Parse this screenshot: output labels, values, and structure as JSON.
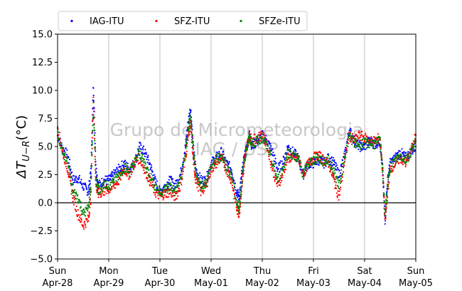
{
  "chart_data": {
    "type": "scatter",
    "title": "",
    "ylabel": "ΔT_{U−R}(°C)",
    "ylabel_parts": {
      "delta": "ΔT",
      "subscript": "U−R",
      "unit": "(°C)"
    },
    "ylim": [
      -5.0,
      15.0
    ],
    "yticks": [
      -5.0,
      -2.5,
      0.0,
      2.5,
      5.0,
      7.5,
      10.0,
      12.5,
      15.0
    ],
    "ytick_labels": [
      "−5.0",
      "−2.5",
      "0.0",
      "2.5",
      "5.0",
      "7.5",
      "10.0",
      "12.5",
      "15.0"
    ],
    "xlim": [
      0,
      7
    ],
    "x_unit": "days since Sun Apr-28 00:00",
    "xticks": [
      {
        "day": "Sun",
        "date": "Apr-28"
      },
      {
        "day": "Mon",
        "date": "Apr-29"
      },
      {
        "day": "Tue",
        "date": "Apr-30"
      },
      {
        "day": "Wed",
        "date": "May-01"
      },
      {
        "day": "Thu",
        "date": "May-02"
      },
      {
        "day": "Fri",
        "date": "May-03"
      },
      {
        "day": "Sat",
        "date": "May-04"
      },
      {
        "day": "Sun",
        "date": "May-05"
      }
    ],
    "grid": "vertical",
    "zero_line": true,
    "legend_position": "top",
    "watermark": [
      "Grupo de Micrometeorologia",
      "IAG / USP"
    ],
    "series": [
      {
        "name": "IAG-ITU",
        "color": "#0000ff",
        "x": [
          0,
          0.1,
          0.2,
          0.3,
          0.4,
          0.5,
          0.6,
          0.65,
          0.7,
          0.75,
          0.8,
          0.9,
          1.0,
          1.1,
          1.2,
          1.3,
          1.4,
          1.5,
          1.6,
          1.7,
          1.8,
          1.9,
          2.0,
          2.1,
          2.2,
          2.3,
          2.4,
          2.5,
          2.55,
          2.6,
          2.65,
          2.7,
          2.8,
          2.9,
          3.0,
          3.1,
          3.2,
          3.3,
          3.4,
          3.5,
          3.55,
          3.6,
          3.65,
          3.7,
          3.75,
          3.8,
          3.9,
          4.0,
          4.1,
          4.2,
          4.3,
          4.4,
          4.5,
          4.6,
          4.7,
          4.8,
          4.9,
          5.0,
          5.1,
          5.2,
          5.3,
          5.4,
          5.5,
          5.6,
          5.7,
          5.8,
          5.9,
          6.0,
          6.1,
          6.2,
          6.3,
          6.35,
          6.4,
          6.45,
          6.5,
          6.6,
          6.7,
          6.8,
          6.9,
          7.0
        ],
        "y": [
          6.0,
          4.8,
          4.2,
          2.0,
          2.2,
          1.5,
          1.0,
          2.5,
          10.5,
          3.0,
          1.5,
          2.0,
          2.0,
          2.5,
          3.0,
          3.5,
          3.0,
          3.5,
          5.0,
          4.5,
          3.5,
          2.0,
          1.0,
          1.5,
          2.0,
          1.5,
          2.5,
          5.0,
          7.0,
          8.5,
          5.0,
          3.0,
          2.0,
          2.0,
          3.5,
          4.0,
          4.5,
          3.5,
          3.0,
          1.0,
          0.5,
          2.5,
          4.0,
          5.0,
          6.0,
          5.0,
          5.5,
          6.0,
          5.5,
          4.5,
          3.0,
          3.5,
          5.0,
          4.5,
          4.0,
          2.5,
          3.5,
          3.5,
          3.8,
          3.5,
          4.0,
          3.5,
          2.5,
          4.0,
          6.5,
          5.5,
          5.0,
          5.0,
          5.5,
          5.2,
          5.5,
          3.0,
          -1.5,
          2.0,
          3.5,
          4.0,
          4.5,
          4.0,
          4.5,
          5.0
        ]
      },
      {
        "name": "SFZ-ITU",
        "color": "#ff0000",
        "x": [
          0,
          0.1,
          0.2,
          0.3,
          0.4,
          0.5,
          0.6,
          0.65,
          0.7,
          0.75,
          0.8,
          0.9,
          1.0,
          1.1,
          1.2,
          1.3,
          1.4,
          1.5,
          1.6,
          1.7,
          1.8,
          1.9,
          2.0,
          2.1,
          2.2,
          2.3,
          2.4,
          2.5,
          2.55,
          2.6,
          2.65,
          2.7,
          2.8,
          2.9,
          3.0,
          3.1,
          3.2,
          3.3,
          3.4,
          3.5,
          3.55,
          3.6,
          3.65,
          3.7,
          3.75,
          3.8,
          3.9,
          4.0,
          4.1,
          4.2,
          4.3,
          4.4,
          4.5,
          4.6,
          4.7,
          4.8,
          4.9,
          5.0,
          5.1,
          5.2,
          5.3,
          5.4,
          5.5,
          5.6,
          5.7,
          5.8,
          5.9,
          6.0,
          6.1,
          6.2,
          6.3,
          6.35,
          6.4,
          6.45,
          6.5,
          6.6,
          6.7,
          6.8,
          6.9,
          7.0
        ],
        "y": [
          6.8,
          4.5,
          3.0,
          0.5,
          -1.0,
          -2.0,
          -1.5,
          0.5,
          9.5,
          1.5,
          0.8,
          1.0,
          1.2,
          1.5,
          2.0,
          3.0,
          2.5,
          3.5,
          4.0,
          3.0,
          2.0,
          1.0,
          0.6,
          0.8,
          1.0,
          0.5,
          1.5,
          4.0,
          6.0,
          7.0,
          4.0,
          2.0,
          1.0,
          1.5,
          3.0,
          3.5,
          4.0,
          3.0,
          2.0,
          -0.5,
          -1.0,
          1.5,
          3.5,
          5.0,
          6.0,
          5.5,
          5.8,
          6.0,
          5.0,
          3.0,
          1.5,
          2.5,
          4.0,
          4.0,
          4.0,
          2.5,
          3.5,
          4.0,
          4.2,
          3.8,
          3.5,
          2.0,
          0.5,
          3.5,
          6.0,
          5.5,
          6.0,
          5.8,
          5.5,
          5.5,
          5.8,
          3.0,
          -1.8,
          1.0,
          3.0,
          3.5,
          4.0,
          3.5,
          4.5,
          6.0
        ]
      },
      {
        "name": "SFZe-ITU",
        "color": "#008000",
        "x": [
          0,
          0.1,
          0.2,
          0.3,
          0.4,
          0.5,
          0.6,
          0.65,
          0.7,
          0.75,
          0.8,
          0.9,
          1.0,
          1.1,
          1.2,
          1.3,
          1.4,
          1.5,
          1.6,
          1.7,
          1.8,
          1.9,
          2.0,
          2.1,
          2.2,
          2.3,
          2.4,
          2.5,
          2.55,
          2.6,
          2.65,
          2.7,
          2.8,
          2.9,
          3.0,
          3.1,
          3.2,
          3.3,
          3.4,
          3.5,
          3.55,
          3.6,
          3.65,
          3.7,
          3.75,
          3.8,
          3.9,
          4.0,
          4.1,
          4.2,
          4.3,
          4.4,
          4.5,
          4.6,
          4.7,
          4.8,
          4.9,
          5.0,
          5.1,
          5.2,
          5.3,
          5.4,
          5.5,
          5.6,
          5.7,
          5.8,
          5.9,
          6.0,
          6.1,
          6.2,
          6.3,
          6.35,
          6.4,
          6.45,
          6.5,
          6.6,
          6.7,
          6.8,
          6.9,
          7.0
        ],
        "y": [
          6.2,
          4.6,
          3.5,
          1.0,
          0.5,
          -1.0,
          -0.5,
          1.5,
          8.5,
          2.0,
          1.2,
          1.5,
          1.5,
          2.0,
          2.5,
          3.2,
          2.8,
          3.5,
          4.5,
          3.5,
          2.5,
          1.5,
          0.9,
          1.2,
          1.5,
          1.0,
          2.0,
          4.5,
          6.5,
          7.5,
          4.5,
          2.5,
          1.5,
          1.8,
          3.2,
          3.8,
          4.2,
          3.2,
          2.5,
          0.0,
          -0.5,
          2.0,
          3.8,
          5.0,
          5.8,
          5.2,
          5.5,
          5.8,
          5.0,
          3.5,
          2.0,
          3.0,
          4.5,
          4.2,
          4.0,
          2.5,
          3.5,
          3.8,
          4.0,
          3.6,
          3.8,
          2.8,
          1.5,
          3.8,
          6.0,
          5.3,
          5.2,
          5.3,
          5.3,
          5.2,
          5.6,
          3.0,
          -1.0,
          1.5,
          3.2,
          3.8,
          4.2,
          3.8,
          4.5,
          5.5
        ]
      }
    ]
  }
}
